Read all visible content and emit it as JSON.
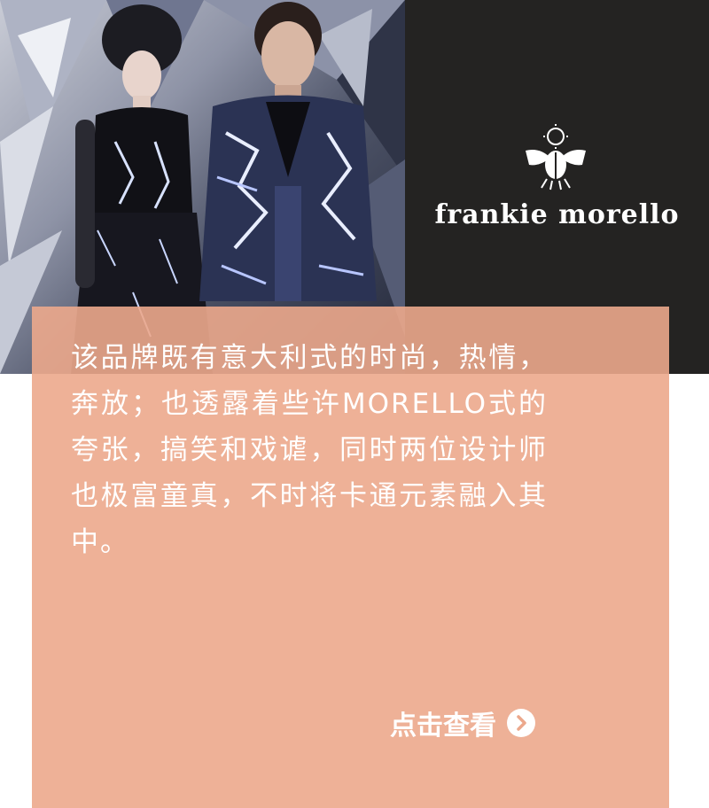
{
  "brand": {
    "name": "frankie morello",
    "colors": {
      "panel": "#242322",
      "text": "#ffffff"
    }
  },
  "hero": {
    "image_description_icon": "fashion-photo"
  },
  "card": {
    "description": "该品牌既有意大利式的时尚，热情，奔放；也透露着些许MORELLO式的夸张，搞笑和戏谑，同时两位设计师也极富童真，不时将卡通元素融入其中。",
    "cta_label": "点击查看",
    "cta_icon": "chevron-right-circle-icon",
    "colors": {
      "background": "#eca88c",
      "text": "#ffffff"
    }
  }
}
